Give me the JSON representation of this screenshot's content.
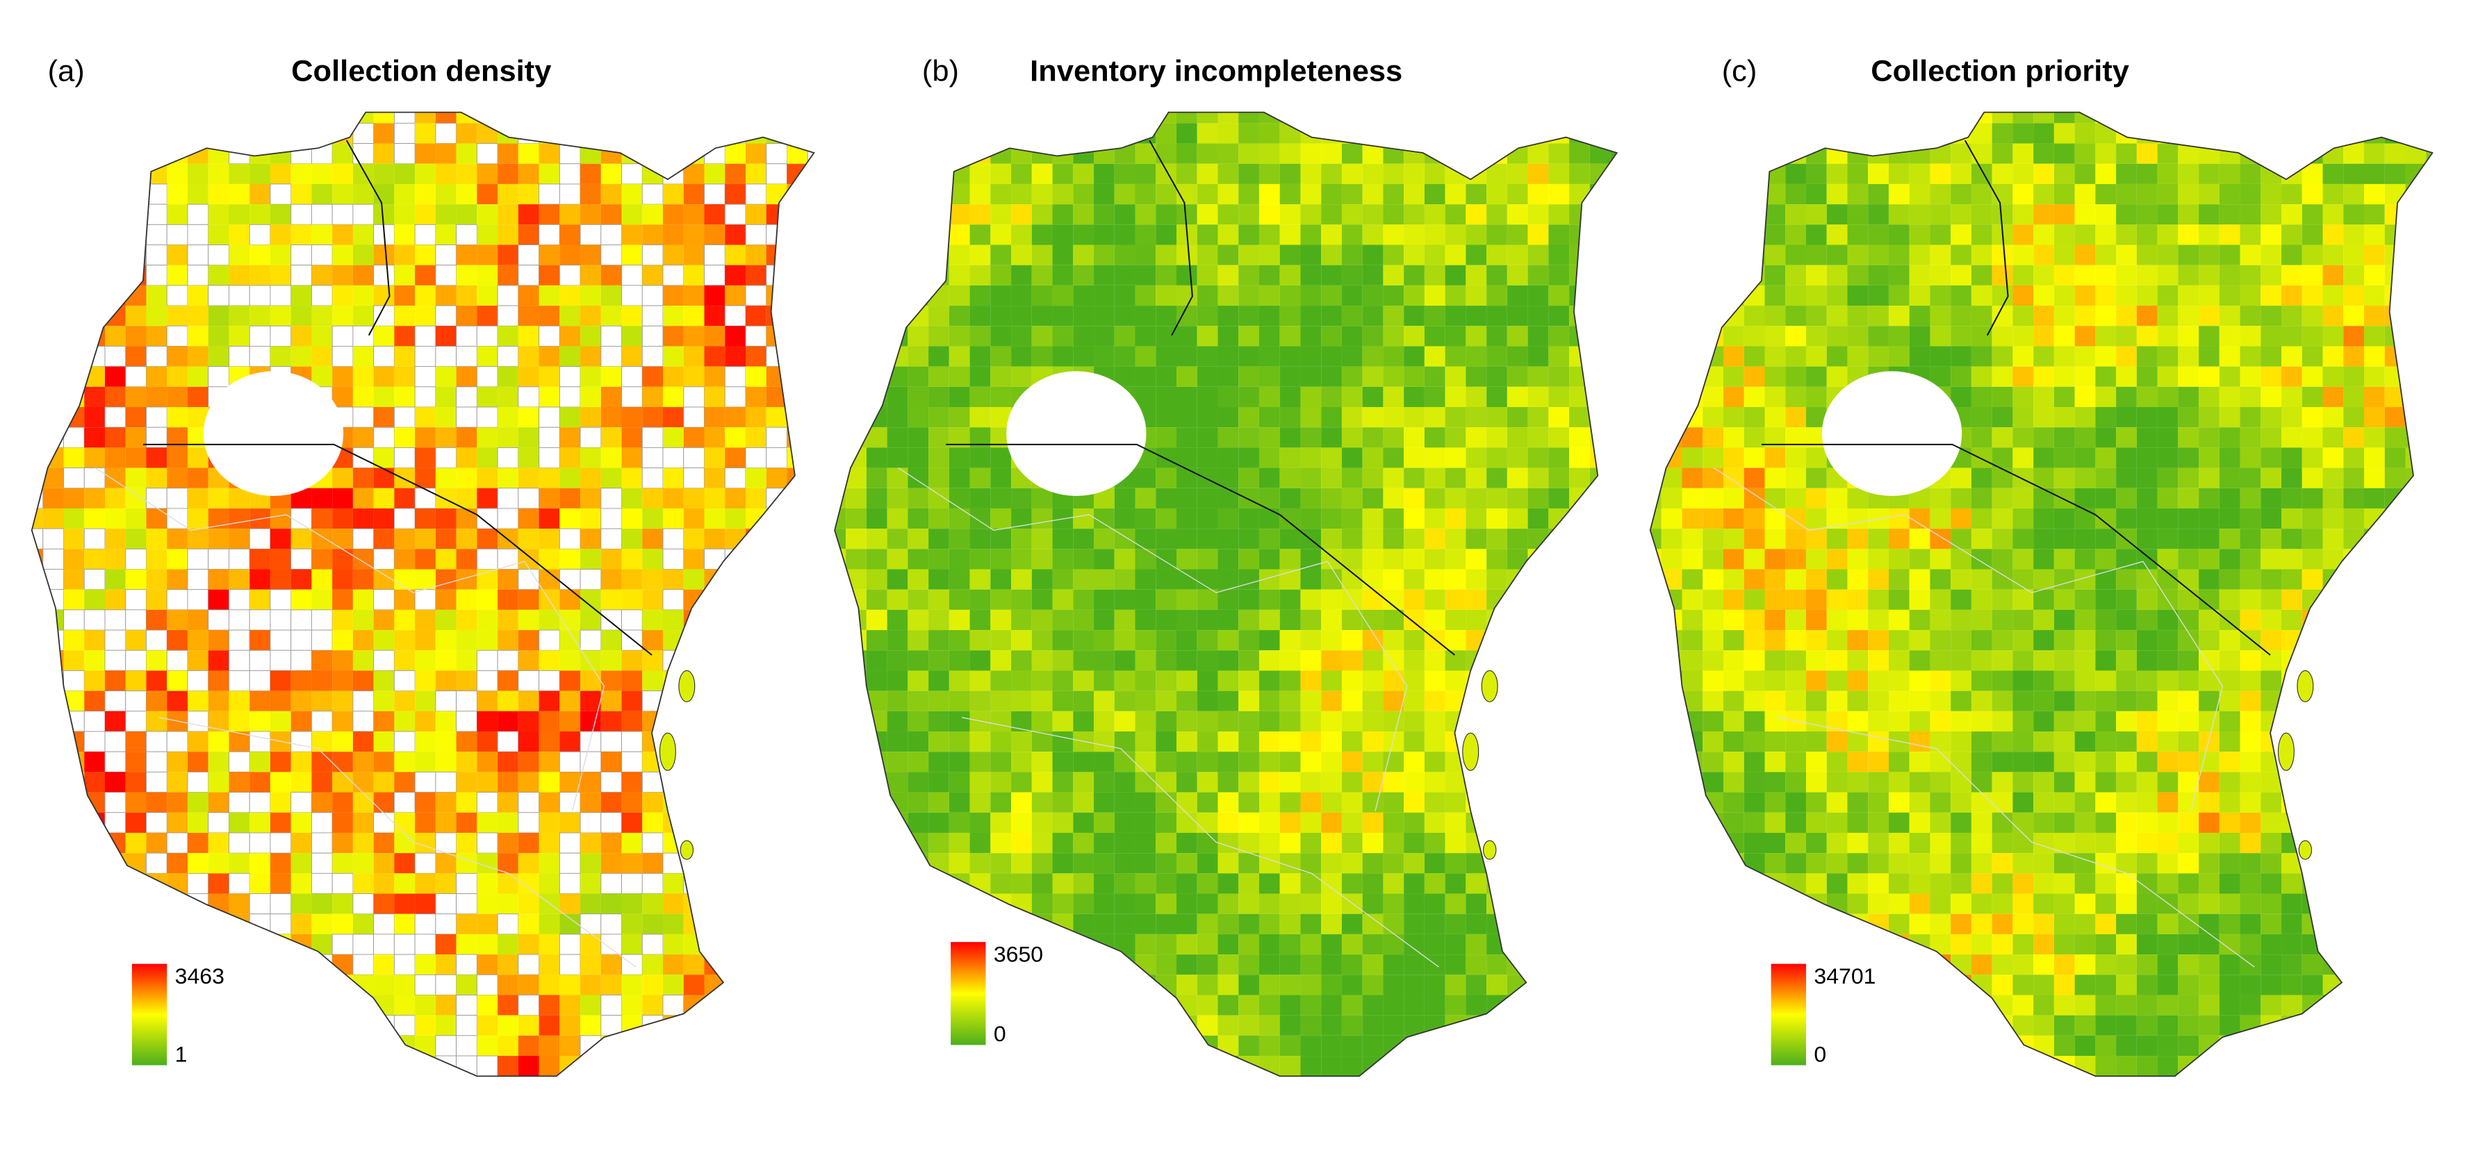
{
  "panels": [
    {
      "label": "(a)",
      "title": "Collection density",
      "legend": {
        "max": 3463,
        "min": 1
      }
    },
    {
      "label": "(b)",
      "title": "Inventory incompleteness",
      "legend": {
        "max": 3650,
        "min": 0
      }
    },
    {
      "label": "(c)",
      "title": "Collection priority",
      "legend": {
        "max": 34701,
        "min": 0
      }
    }
  ]
}
